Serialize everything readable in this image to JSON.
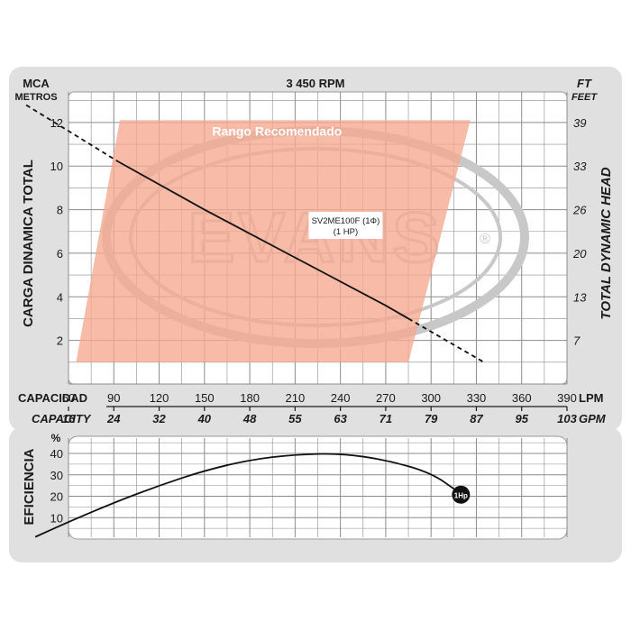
{
  "chart_data": [
    {
      "type": "line",
      "title": "3 450 RPM",
      "y_left": {
        "unit_line1": "MCA",
        "unit_line2": "METROS",
        "label": "CARGA  DINAMICA  TOTAL",
        "ticks": [
          2,
          4,
          6,
          8,
          10,
          12
        ],
        "range": [
          0,
          13.4
        ]
      },
      "y_right": {
        "unit_line1": "FT",
        "unit_line2": "FEET",
        "label": "TOTAL  DYNAMIC  HEAD",
        "ticks": [
          {
            "label": "39",
            "at_m": 12
          },
          {
            "label": "33",
            "at_m": 10
          },
          {
            "label": "26",
            "at_m": 8
          },
          {
            "label": "20",
            "at_m": 6
          },
          {
            "label": "13",
            "at_m": 4
          },
          {
            "label": "7",
            "at_m": 2
          }
        ]
      },
      "x_lpm": {
        "label": "CAPACIDAD",
        "unit": "LPM",
        "ticks": [
          60,
          90,
          120,
          150,
          180,
          210,
          240,
          270,
          300,
          330,
          360,
          390
        ],
        "range": [
          60,
          390
        ]
      },
      "x_gpm": {
        "label": "CAPACITY",
        "unit": "GPM",
        "ticks": [
          {
            "label": "16",
            "at_lpm": 60
          },
          {
            "label": "24",
            "at_lpm": 90
          },
          {
            "label": "32",
            "at_lpm": 120
          },
          {
            "label": "40",
            "at_lpm": 150
          },
          {
            "label": "48",
            "at_lpm": 180
          },
          {
            "label": "55",
            "at_lpm": 210
          },
          {
            "label": "63",
            "at_lpm": 240
          },
          {
            "label": "71",
            "at_lpm": 270
          },
          {
            "label": "79",
            "at_lpm": 300
          },
          {
            "label": "87",
            "at_lpm": 330
          },
          {
            "label": "95",
            "at_lpm": 360
          },
          {
            "label": "103",
            "at_lpm": 390
          }
        ]
      },
      "recommended_range": {
        "label": "Rango Recomendado",
        "color": "#f5a88e",
        "polygon": [
          [
            94,
            12.1
          ],
          [
            326,
            12.1
          ],
          [
            285,
            1.0
          ],
          [
            65,
            1.0
          ]
        ]
      },
      "series": [
        {
          "name": "SV2ME100F (1Φ)",
          "sublabel": "(1 HP)",
          "color": "#111111",
          "solid": {
            "x": [
              93,
              150,
              210,
              270,
              285
            ],
            "y": [
              10.2,
              8.0,
              5.8,
              3.6,
              3.0
            ]
          },
          "dashed_low": {
            "x": [
              32,
              93
            ],
            "y": [
              12.8,
              10.2
            ]
          },
          "dashed_high": {
            "x": [
              285,
              335
            ],
            "y": [
              3.0,
              1.0
            ]
          }
        }
      ],
      "watermark": {
        "text": "EVANS",
        "symbol": "®",
        "color": "#c8c8c8"
      },
      "grid": true
    },
    {
      "type": "line",
      "ylabel": "EFICIENCIA",
      "y_unit": "%",
      "y_ticks": [
        10,
        20,
        30,
        40
      ],
      "y_range": [
        0,
        48
      ],
      "x_range": [
        60,
        390
      ],
      "grid": true,
      "series": [
        {
          "name": "1Hp",
          "color": "#111111",
          "x": [
            38,
            60,
            90,
            120,
            150,
            180,
            210,
            240,
            270,
            300,
            318
          ],
          "y": [
            1,
            8,
            17,
            25,
            32,
            37,
            39.5,
            40,
            37,
            31,
            22
          ]
        }
      ]
    }
  ]
}
